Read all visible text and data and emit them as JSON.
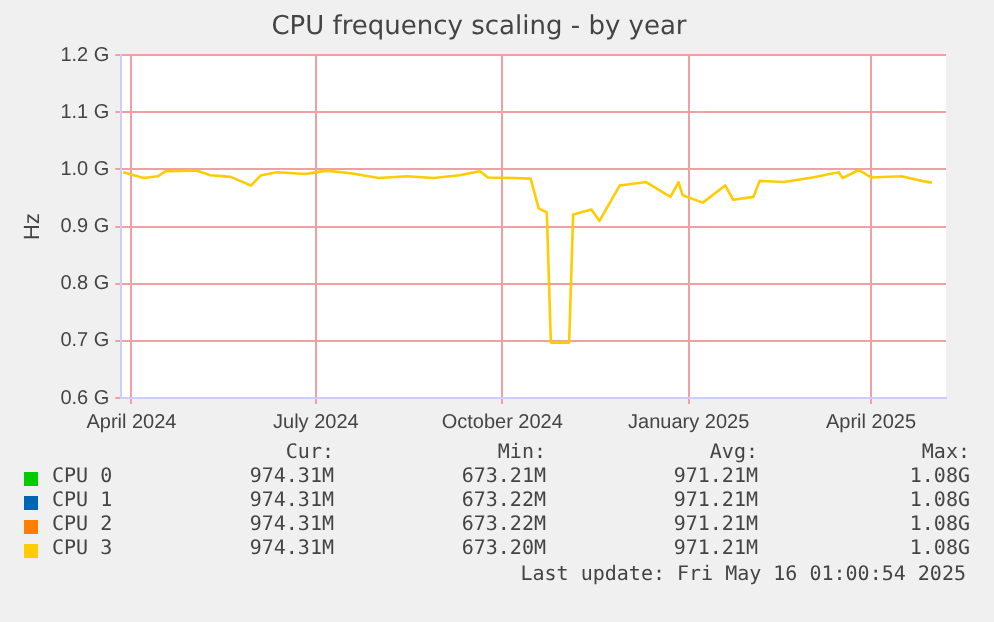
{
  "chart_data": {
    "type": "line",
    "title": "CPU frequency scaling - by year",
    "ylabel": "Hz",
    "x": [
      "2024-03-28",
      "2024-04-07",
      "2024-04-14",
      "2024-04-18",
      "2024-05-03",
      "2024-05-10",
      "2024-05-20",
      "2024-05-30",
      "2024-06-04",
      "2024-06-12",
      "2024-06-26",
      "2024-07-06",
      "2024-07-19",
      "2024-08-01",
      "2024-08-15",
      "2024-08-28",
      "2024-09-10",
      "2024-09-20",
      "2024-09-24",
      "2024-10-07",
      "2024-10-15",
      "2024-10-19",
      "2024-10-23",
      "2024-10-25",
      "2024-11-03",
      "2024-11-05",
      "2024-11-14",
      "2024-11-18",
      "2024-11-28",
      "2024-12-11",
      "2024-12-23",
      "2024-12-27",
      "2024-12-29",
      "2025-01-08",
      "2025-01-19",
      "2025-01-23",
      "2025-02-02",
      "2025-02-05",
      "2025-02-17",
      "2025-03-03",
      "2025-03-16",
      "2025-03-18",
      "2025-03-26",
      "2025-04-01",
      "2025-04-16",
      "2025-04-26",
      "2025-05-01"
    ],
    "series": [
      {
        "name": "CPU 0",
        "color": "#00cc00",
        "values": [
          null,
          null,
          null,
          null,
          null,
          null,
          null,
          null,
          null,
          null,
          null,
          null,
          null,
          null,
          null,
          null,
          null,
          null,
          null,
          null,
          null,
          null,
          null,
          null,
          null,
          null,
          null,
          null,
          null,
          null,
          null,
          null,
          null,
          null,
          null,
          null,
          null,
          null,
          null,
          null,
          null,
          null,
          null,
          null,
          null,
          null,
          null
        ]
      },
      {
        "name": "CPU 1",
        "color": "#0066b3",
        "values": [
          null,
          null,
          null,
          null,
          null,
          null,
          null,
          null,
          null,
          null,
          null,
          null,
          null,
          null,
          null,
          null,
          null,
          null,
          null,
          null,
          null,
          null,
          null,
          null,
          null,
          null,
          null,
          null,
          null,
          null,
          null,
          null,
          null,
          null,
          null,
          null,
          null,
          null,
          null,
          null,
          null,
          null,
          null,
          null,
          null,
          null,
          null
        ]
      },
      {
        "name": "CPU 2",
        "color": "#ff8000",
        "values": [
          null,
          null,
          null,
          null,
          null,
          null,
          null,
          null,
          null,
          null,
          null,
          null,
          null,
          null,
          null,
          null,
          null,
          null,
          null,
          null,
          null,
          null,
          null,
          null,
          null,
          null,
          null,
          null,
          null,
          null,
          null,
          null,
          null,
          null,
          null,
          null,
          null,
          null,
          null,
          null,
          null,
          null,
          null,
          null,
          null,
          null,
          null
        ]
      },
      {
        "name": "CPU 3",
        "color": "#ffcc00",
        "values": [
          0.995,
          0.985,
          0.988,
          0.997,
          0.998,
          0.99,
          0.987,
          0.972,
          0.99,
          0.995,
          0.992,
          0.998,
          0.993,
          0.985,
          0.988,
          0.985,
          0.99,
          0.997,
          0.986,
          0.985,
          0.984,
          0.932,
          0.925,
          0.697,
          0.697,
          0.921,
          0.93,
          0.91,
          0.972,
          0.978,
          0.952,
          0.978,
          0.955,
          0.942,
          0.972,
          0.947,
          0.952,
          0.98,
          0.978,
          0.986,
          0.995,
          0.985,
          0.999,
          0.986,
          0.988,
          0.98,
          0.977
        ]
      }
    ],
    "xlim": [
      "2024-03-27",
      "2025-05-08"
    ],
    "xticks": [
      {
        "value": "2024-04-01",
        "label": "April 2024"
      },
      {
        "value": "2024-07-01",
        "label": "July 2024"
      },
      {
        "value": "2024-10-01",
        "label": "October 2024"
      },
      {
        "value": "2025-01-01",
        "label": "January 2025"
      },
      {
        "value": "2025-04-01",
        "label": "April 2025"
      }
    ],
    "ylim": [
      0.6,
      1.2
    ],
    "yticks": [
      {
        "value": 0.6,
        "label": "0.6 G"
      },
      {
        "value": 0.7,
        "label": "0.7 G"
      },
      {
        "value": 0.8,
        "label": "0.8 G"
      },
      {
        "value": 0.9,
        "label": "0.9 G"
      },
      {
        "value": 1.0,
        "label": "1.0 G"
      },
      {
        "value": 1.1,
        "label": "1.1 G"
      },
      {
        "value": 1.2,
        "label": "1.2 G"
      }
    ],
    "grid": true,
    "legend": "bottom",
    "marker": "none",
    "line_style": "solid",
    "annotations": [
      "Cur:",
      "Min:",
      "Avg:",
      "Max:",
      "974.31M",
      "673.21M",
      "971.21M",
      "1.08G",
      "974.31M",
      "673.22M",
      "971.21M",
      "1.08G",
      "974.31M",
      "673.22M",
      "971.21M",
      "1.08G",
      "974.31M",
      "673.20M",
      "971.21M",
      "1.08G",
      "Last update: Fri May 16 01:00:54 2025"
    ]
  }
}
